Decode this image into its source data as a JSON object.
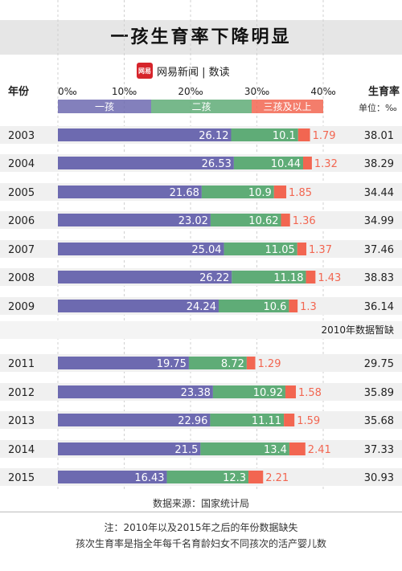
{
  "title": "一孩生育率下降明显",
  "brand": {
    "logo": "网易",
    "text": "网易新闻 | 数读"
  },
  "header": {
    "year_label": "年份",
    "rate_label": "生育率",
    "unit_label": "单位：‰"
  },
  "legend": [
    "一孩",
    "二孩",
    "三孩及以上"
  ],
  "missing_note": "2010年数据暂缺",
  "source": "数据来源：国家统计局",
  "notes": [
    "注：2010年以及2015年之后的年份数据缺失",
    "孩次生育率是指全年每千名育龄妇女不同孩次的活产婴儿数"
  ],
  "colors": {
    "first": "#6d6ab0",
    "second": "#5fac77",
    "third": "#f26651",
    "third_label": "#f26651",
    "row_bg": "#f0f0f0"
  },
  "chart_data": {
    "type": "bar",
    "stacked": true,
    "orientation": "horizontal",
    "ticks": [
      "0‰",
      "10‰",
      "20‰",
      "30‰",
      "40‰"
    ],
    "xlim": [
      0,
      40
    ],
    "categories": [
      "2003",
      "2004",
      "2005",
      "2006",
      "2007",
      "2008",
      "2009",
      "2011",
      "2012",
      "2013",
      "2014",
      "2015"
    ],
    "series": [
      {
        "name": "一孩",
        "values": [
          26.12,
          26.53,
          21.68,
          23.02,
          25.04,
          26.22,
          24.24,
          19.75,
          23.38,
          22.96,
          21.5,
          16.43
        ]
      },
      {
        "name": "二孩",
        "values": [
          10.1,
          10.44,
          10.9,
          10.62,
          11.05,
          11.18,
          10.6,
          8.72,
          10.92,
          11.11,
          13.4,
          12.3
        ]
      },
      {
        "name": "三孩及以上",
        "values": [
          1.79,
          1.32,
          1.85,
          1.36,
          1.37,
          1.43,
          1.3,
          1.29,
          1.58,
          1.59,
          2.41,
          2.21
        ]
      }
    ],
    "totals": [
      "38.01",
      "38.29",
      "34.44",
      "34.99",
      "37.46",
      "38.83",
      "36.14",
      "29.75",
      "35.89",
      "35.68",
      "37.33",
      "30.93"
    ],
    "value_labels": {
      "first": [
        "26.12",
        "26.53",
        "21.68",
        "23.02",
        "25.04",
        "26.22",
        "24.24",
        "19.75",
        "23.38",
        "22.96",
        "21.5",
        "16.43"
      ],
      "second": [
        "10.1",
        "10.44",
        "10.9",
        "10.62",
        "11.05",
        "11.18",
        "10.6",
        "8.72",
        "10.92",
        "11.11",
        "13.4",
        "12.3"
      ],
      "third": [
        "1.79",
        "1.32",
        "1.85",
        "1.36",
        "1.37",
        "1.43",
        "1.3",
        "1.29",
        "1.58",
        "1.59",
        "2.41",
        "2.21"
      ]
    }
  }
}
